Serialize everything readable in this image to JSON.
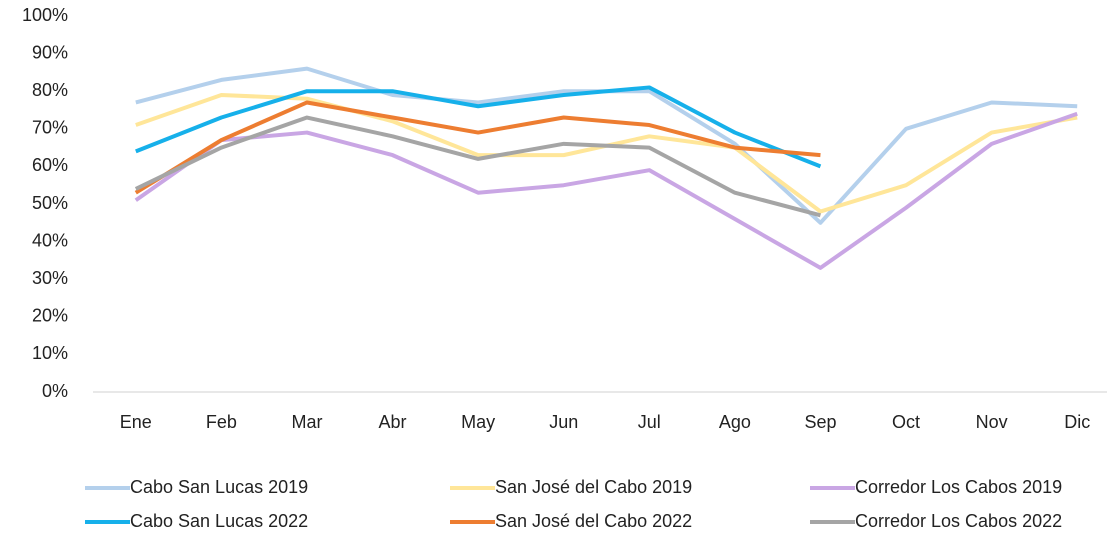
{
  "chart_data": {
    "type": "line",
    "categories": [
      "Ene",
      "Feb",
      "Mar",
      "Abr",
      "May",
      "Jun",
      "Jul",
      "Ago",
      "Sep",
      "Oct",
      "Nov",
      "Dic"
    ],
    "series": [
      {
        "name": "Cabo San Lucas 2019",
        "color": "#b4d0ec",
        "values": [
          77,
          83,
          86,
          79,
          77,
          80,
          80,
          66,
          45,
          70,
          77,
          76
        ]
      },
      {
        "name": "San José del Cabo 2019",
        "color": "#ffe699",
        "values": [
          71,
          79,
          78,
          72,
          63,
          63,
          68,
          65,
          48,
          55,
          69,
          73
        ]
      },
      {
        "name": "Corredor Los Cabos 2019",
        "color": "#c9a6e4",
        "values": [
          51,
          67,
          69,
          63,
          53,
          55,
          59,
          46,
          33,
          49,
          66,
          74
        ]
      },
      {
        "name": "Cabo San Lucas 2022",
        "color": "#16b0ea",
        "values": [
          64,
          73,
          80,
          80,
          76,
          79,
          81,
          69,
          60,
          null,
          null,
          null
        ]
      },
      {
        "name": "San José del Cabo 2022",
        "color": "#ed7d31",
        "values": [
          53,
          67,
          77,
          73,
          69,
          73,
          71,
          65,
          63,
          null,
          null,
          null
        ]
      },
      {
        "name": "Corredor Los Cabos 2022",
        "color": "#a5a5a5",
        "values": [
          54,
          65,
          73,
          68,
          62,
          66,
          65,
          53,
          47,
          null,
          null,
          null
        ]
      }
    ],
    "ylim": [
      0,
      100
    ],
    "yticks": [
      {
        "value": 0,
        "label": "0%"
      },
      {
        "value": 10,
        "label": "10%"
      },
      {
        "value": 20,
        "label": "20%"
      },
      {
        "value": 30,
        "label": "30%"
      },
      {
        "value": 40,
        "label": "40%"
      },
      {
        "value": 50,
        "label": "50%"
      },
      {
        "value": 60,
        "label": "60%"
      },
      {
        "value": 70,
        "label": "70%"
      },
      {
        "value": 80,
        "label": "80%"
      },
      {
        "value": 90,
        "label": "90%"
      },
      {
        "value": 100,
        "label": "100%"
      }
    ],
    "grid": false,
    "legend": "bottom"
  }
}
